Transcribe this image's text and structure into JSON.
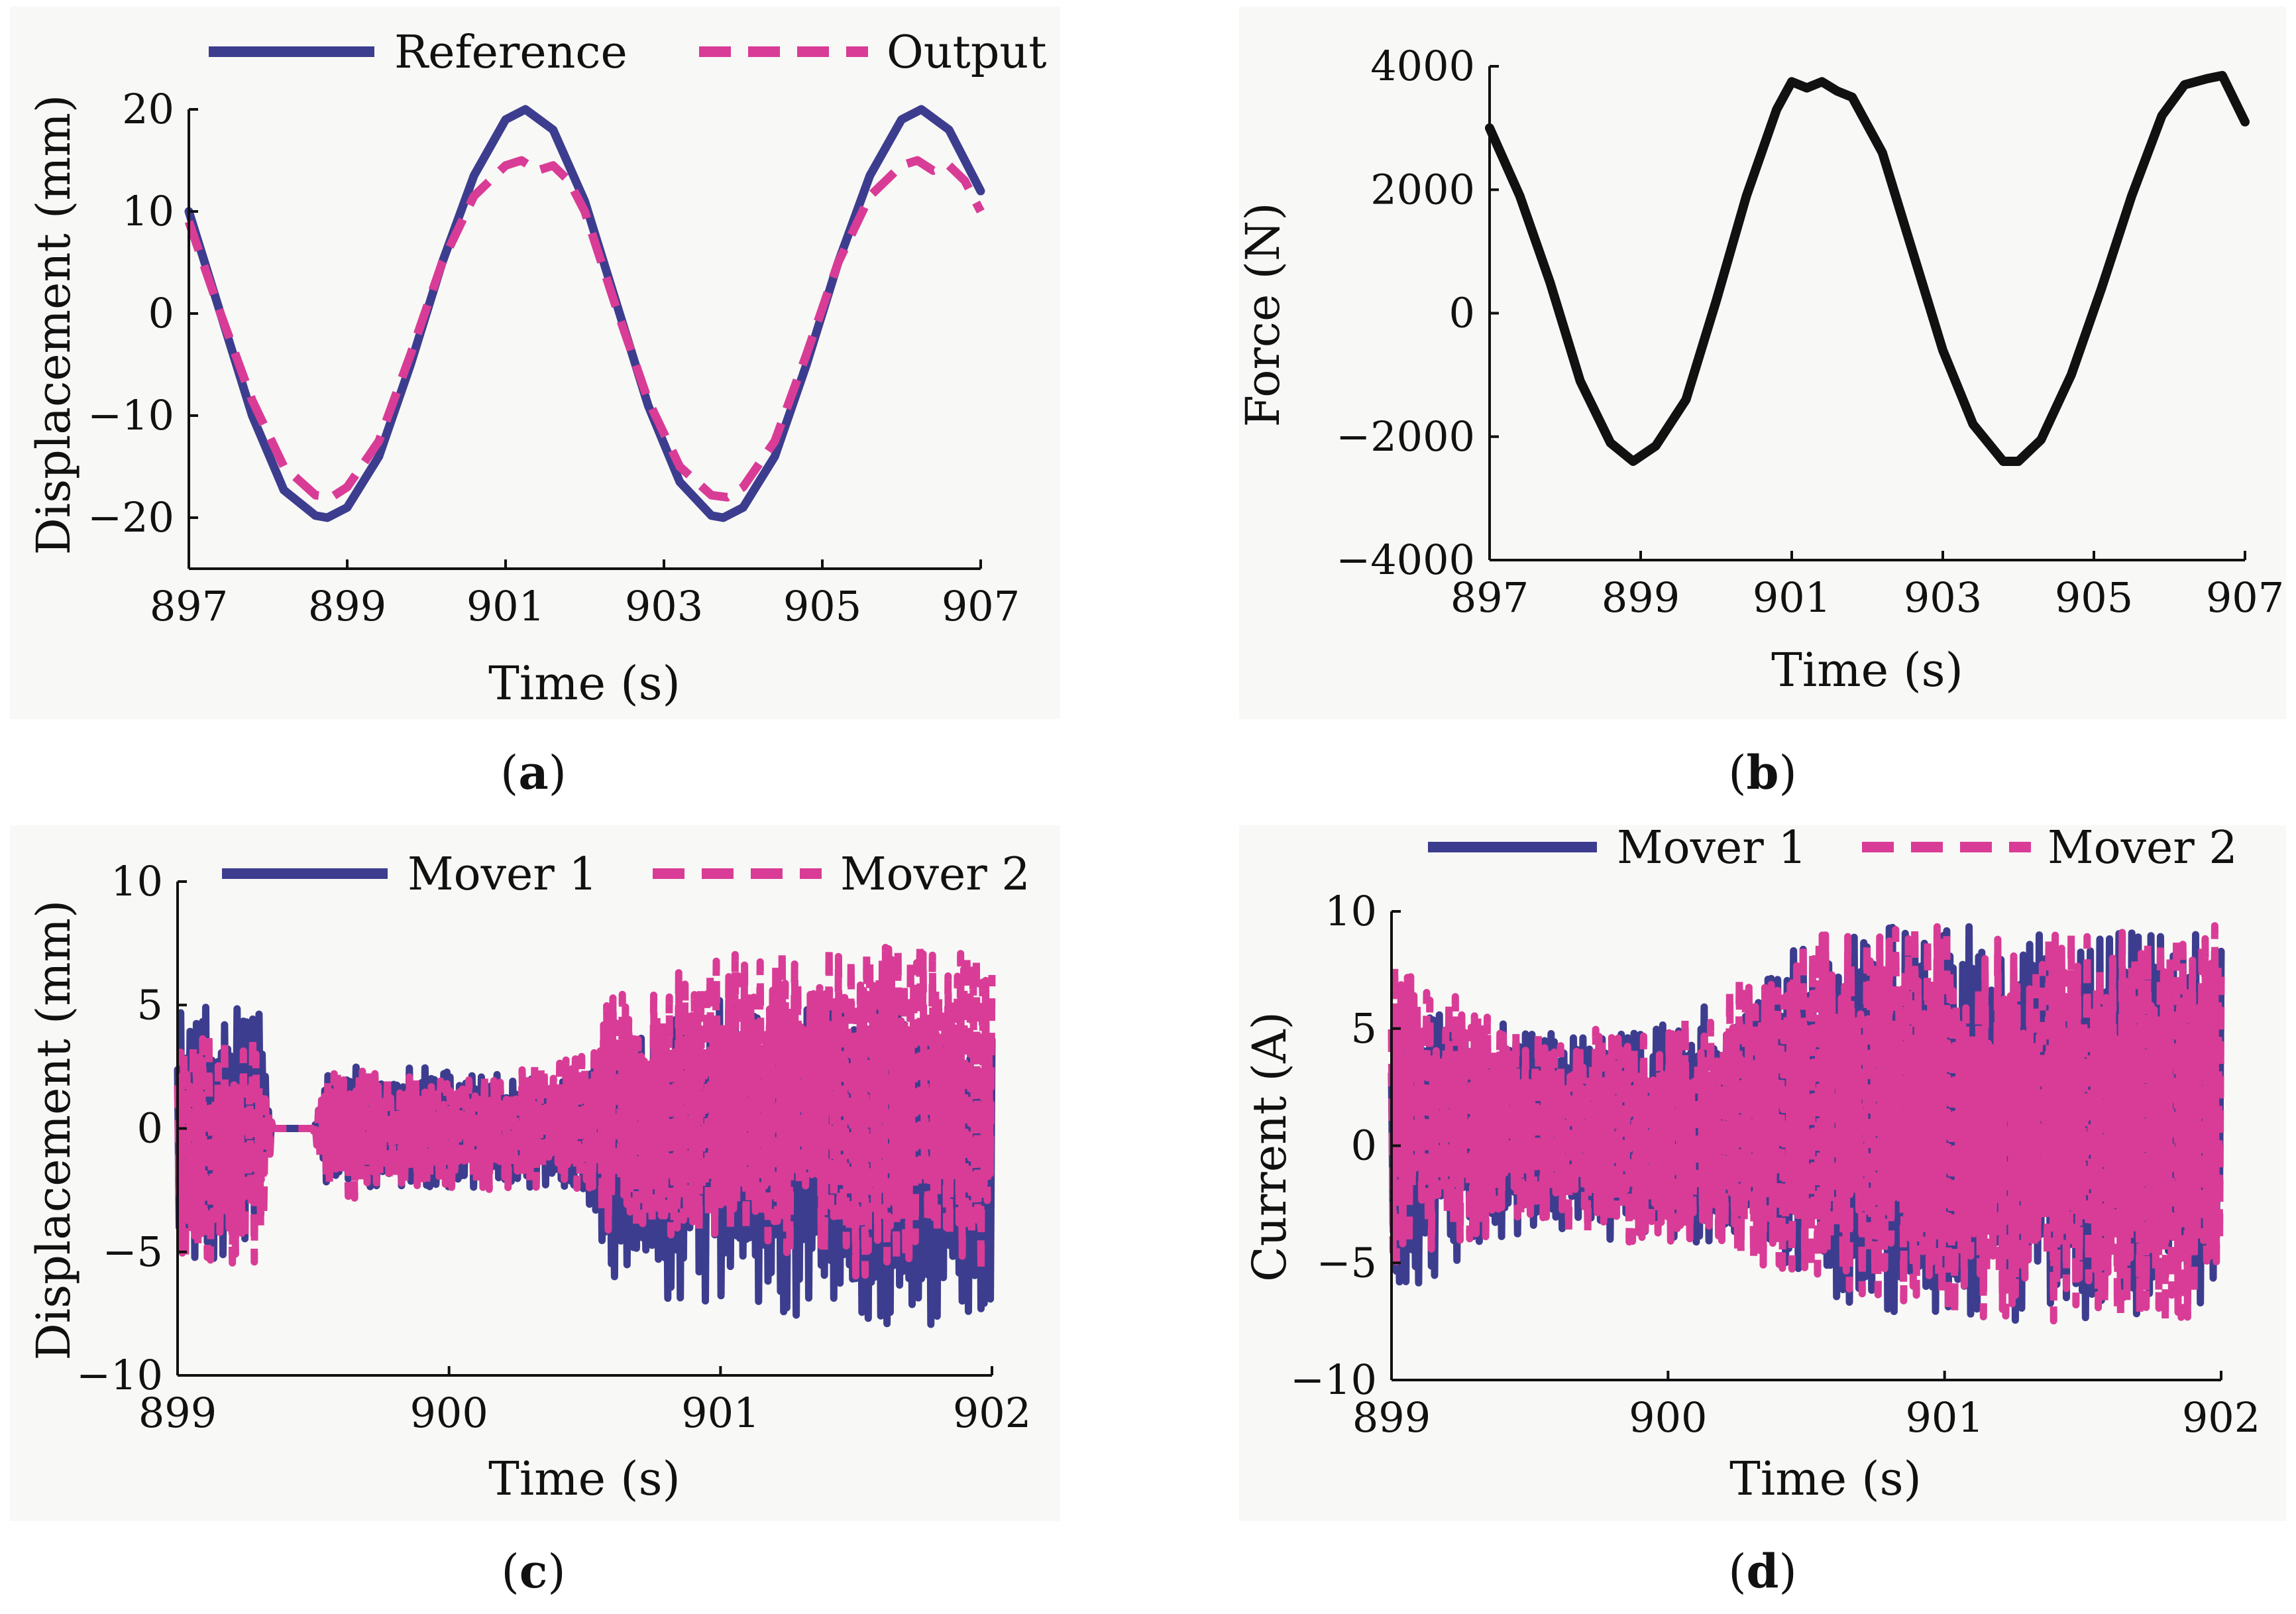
{
  "colors": {
    "navy": "#3d3d8f",
    "magenta": "#d93c96",
    "black": "#111111",
    "panel_bg": "#f8f8f6"
  },
  "chart_data": [
    {
      "id": "a",
      "type": "line",
      "caption": "a",
      "title": "",
      "xlabel": "Time (s)",
      "ylabel": "Displacement (mm)",
      "xlim": [
        897,
        907
      ],
      "ylim": [
        -25,
        20
      ],
      "xticks": [
        897,
        899,
        901,
        903,
        905,
        907
      ],
      "yticks": [
        -20,
        -10,
        0,
        10,
        20
      ],
      "xtick_labels": [
        "897",
        "899",
        "901",
        "903",
        "905",
        "907"
      ],
      "ytick_labels": [
        "−20",
        "−10",
        "0",
        "10",
        "20"
      ],
      "legend": [
        "Reference",
        "Output"
      ],
      "series": [
        {
          "name": "Reference",
          "style": "solid",
          "color": "#3d3d8f",
          "x": [
            897.0,
            897.4,
            897.8,
            898.2,
            898.6,
            898.75,
            899.0,
            899.4,
            899.8,
            900.2,
            900.6,
            901.0,
            901.25,
            901.6,
            902.0,
            902.4,
            902.8,
            903.2,
            903.6,
            903.75,
            904.0,
            904.4,
            904.8,
            905.2,
            905.6,
            906.0,
            906.25,
            906.6,
            907.0
          ],
          "y": [
            10.0,
            0.0,
            -10.0,
            -17.3,
            -19.8,
            -20.0,
            -19.0,
            -14.0,
            -5.0,
            5.0,
            13.5,
            19.0,
            20.0,
            18.0,
            11.0,
            1.0,
            -9.0,
            -16.5,
            -19.8,
            -20.0,
            -19.0,
            -14.0,
            -5.0,
            5.0,
            13.5,
            19.0,
            20.0,
            18.0,
            12.0
          ]
        },
        {
          "name": "Output",
          "style": "dashed",
          "color": "#d93c96",
          "x": [
            897.0,
            897.4,
            897.8,
            898.2,
            898.6,
            898.8,
            899.0,
            899.4,
            899.8,
            900.2,
            900.6,
            901.0,
            901.2,
            901.4,
            901.6,
            901.8,
            902.0,
            902.4,
            902.8,
            903.2,
            903.6,
            903.8,
            904.0,
            904.4,
            904.8,
            905.2,
            905.6,
            906.0,
            906.2,
            906.4,
            906.6,
            906.8,
            907.0
          ],
          "y": [
            9.0,
            0.0,
            -8.5,
            -15.0,
            -17.8,
            -18.0,
            -17.0,
            -12.5,
            -4.0,
            5.0,
            11.5,
            14.5,
            15.0,
            14.0,
            14.5,
            13.0,
            10.0,
            0.5,
            -8.5,
            -15.0,
            -17.8,
            -18.0,
            -17.0,
            -12.5,
            -4.0,
            5.0,
            11.5,
            14.5,
            15.0,
            14.0,
            14.5,
            13.0,
            10.0
          ]
        }
      ]
    },
    {
      "id": "b",
      "type": "line",
      "caption": "b",
      "title": "",
      "xlabel": "Time (s)",
      "ylabel": "Force (N)",
      "xlim": [
        897,
        907
      ],
      "ylim": [
        -4000,
        4000
      ],
      "xticks": [
        897,
        899,
        901,
        903,
        905,
        907
      ],
      "yticks": [
        -4000,
        -2000,
        0,
        2000,
        4000
      ],
      "xtick_labels": [
        "897",
        "899",
        "901",
        "903",
        "905",
        "907"
      ],
      "ytick_labels": [
        "−4000",
        "−2000",
        "0",
        "2000",
        "4000"
      ],
      "series": [
        {
          "name": "Force",
          "style": "solid",
          "color": "#111111",
          "x": [
            897.0,
            897.4,
            897.8,
            898.2,
            898.6,
            898.9,
            899.2,
            899.6,
            900.0,
            900.4,
            900.8,
            901.0,
            901.2,
            901.4,
            901.6,
            901.8,
            902.2,
            902.6,
            903.0,
            903.4,
            903.8,
            904.0,
            904.3,
            904.7,
            905.1,
            905.5,
            905.9,
            906.2,
            906.5,
            906.7,
            907.0
          ],
          "y": [
            3000,
            1900,
            500,
            -1100,
            -2100,
            -2400,
            -2150,
            -1400,
            200,
            1900,
            3300,
            3750,
            3650,
            3750,
            3600,
            3500,
            2600,
            1000,
            -600,
            -1800,
            -2400,
            -2400,
            -2050,
            -1000,
            400,
            1900,
            3200,
            3700,
            3800,
            3850,
            3100
          ]
        }
      ]
    },
    {
      "id": "c",
      "type": "line",
      "caption": "c",
      "title": "",
      "xlabel": "Time (s)",
      "ylabel": "Displacement (mm)",
      "xlim": [
        899,
        902
      ],
      "ylim": [
        -10,
        10
      ],
      "xticks": [
        899,
        900,
        901,
        902
      ],
      "yticks": [
        -10,
        -5,
        0,
        5,
        10
      ],
      "xtick_labels": [
        "899",
        "900",
        "901",
        "902"
      ],
      "ytick_labels": [
        "−10",
        "−5",
        "0",
        "5",
        "10"
      ],
      "legend": [
        "Mover 1",
        "Mover 2"
      ],
      "series": [
        {
          "name": "Mover 1",
          "style": "solid",
          "color": "#3d3d8f",
          "envelope_x": [
            899.0,
            899.3,
            899.35,
            899.5,
            899.55,
            900.0,
            900.5,
            900.6,
            901.0,
            901.5,
            902.0
          ],
          "envelope_min": [
            -6.0,
            -5.0,
            0.0,
            0.0,
            -2.5,
            -2.5,
            -2.5,
            -7.0,
            -7.0,
            -8.0,
            -8.0
          ],
          "envelope_max": [
            5.0,
            5.0,
            0.0,
            0.0,
            2.5,
            2.5,
            2.0,
            3.5,
            5.5,
            5.5,
            4.0
          ]
        },
        {
          "name": "Mover 2",
          "style": "dashed",
          "color": "#d93c96",
          "envelope_x": [
            899.0,
            899.3,
            899.35,
            899.5,
            899.55,
            900.0,
            900.5,
            900.6,
            901.0,
            901.5,
            902.0
          ],
          "envelope_min": [
            -5.5,
            -5.5,
            0.0,
            0.0,
            -3.0,
            -2.5,
            -2.5,
            -4.5,
            -4.5,
            -6.0,
            -6.0
          ],
          "envelope_max": [
            4.0,
            4.0,
            0.0,
            0.0,
            2.5,
            2.0,
            3.0,
            5.5,
            7.0,
            7.5,
            7.5
          ]
        }
      ]
    },
    {
      "id": "d",
      "type": "line",
      "caption": "d",
      "title": "",
      "xlabel": "Time (s)",
      "ylabel": "Current (A)",
      "xlim": [
        899,
        902
      ],
      "ylim": [
        -10,
        10
      ],
      "xticks": [
        899,
        900,
        901,
        902
      ],
      "yticks": [
        -10,
        -5,
        0,
        5,
        10
      ],
      "xtick_labels": [
        "899",
        "900",
        "901",
        "902"
      ],
      "ytick_labels": [
        "−10",
        "−5",
        "0",
        "5",
        "10"
      ],
      "legend": [
        "Mover 1",
        "Mover 2"
      ],
      "series": [
        {
          "name": "Mover 1",
          "style": "solid",
          "color": "#3d3d8f",
          "envelope_x": [
            899.0,
            899.5,
            900.0,
            900.3,
            900.5,
            901.0,
            901.5,
            902.0
          ],
          "envelope_min": [
            -6.5,
            -3.5,
            -4.5,
            -4.5,
            -6.5,
            -7.5,
            -7.5,
            -7.0
          ],
          "envelope_max": [
            6.0,
            5.0,
            5.5,
            6.5,
            9.0,
            9.5,
            9.5,
            9.5
          ]
        },
        {
          "name": "Mover 2",
          "style": "dashed",
          "color": "#d93c96",
          "envelope_x": [
            899.0,
            899.5,
            900.0,
            900.3,
            900.5,
            901.0,
            901.5,
            902.0
          ],
          "envelope_min": [
            -5.0,
            -3.5,
            -4.5,
            -5.0,
            -5.5,
            -8.0,
            -7.5,
            -7.5
          ],
          "envelope_max": [
            8.0,
            5.0,
            5.0,
            7.5,
            9.0,
            9.5,
            9.0,
            9.5
          ]
        }
      ]
    }
  ]
}
